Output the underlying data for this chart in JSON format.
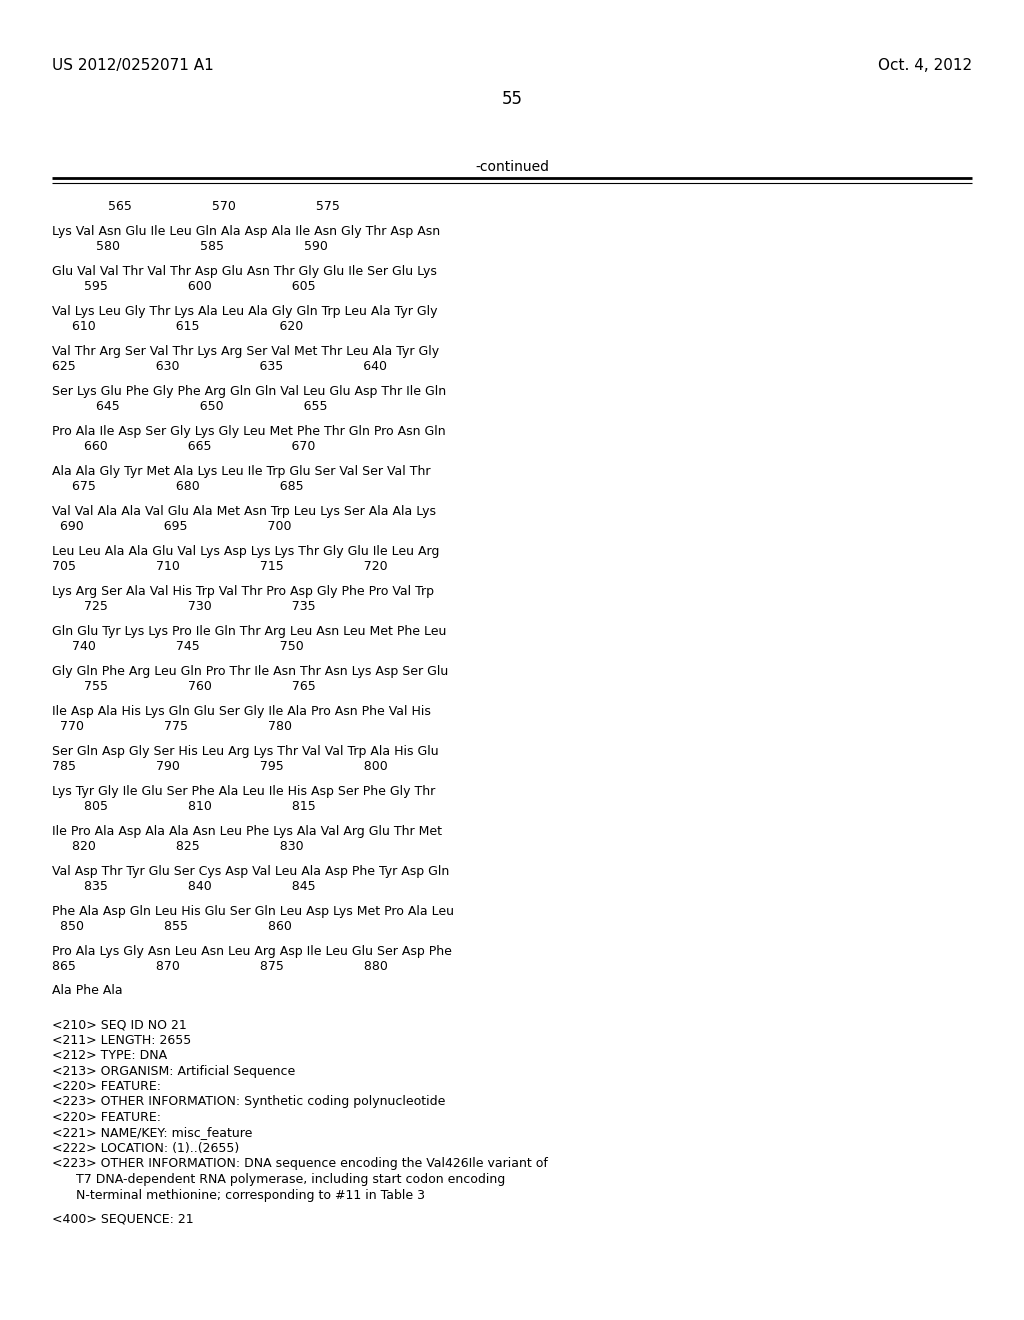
{
  "header_left": "US 2012/0252071 A1",
  "header_right": "Oct. 4, 2012",
  "page_number": "55",
  "continued_label": "-continued",
  "background_color": "#ffffff",
  "text_color": "#000000",
  "sequence_lines": [
    {
      "type": "numbers",
      "text": "              565                    570                    575"
    },
    {
      "type": "blank"
    },
    {
      "type": "seq",
      "text": "Lys Val Asn Glu Ile Leu Gln Ala Asp Ala Ile Asn Gly Thr Asp Asn"
    },
    {
      "type": "numbers",
      "text": "           580                    585                    590"
    },
    {
      "type": "blank"
    },
    {
      "type": "seq",
      "text": "Glu Val Val Thr Val Thr Asp Glu Asn Thr Gly Glu Ile Ser Glu Lys"
    },
    {
      "type": "numbers",
      "text": "        595                    600                    605"
    },
    {
      "type": "blank"
    },
    {
      "type": "seq",
      "text": "Val Lys Leu Gly Thr Lys Ala Leu Ala Gly Gln Trp Leu Ala Tyr Gly"
    },
    {
      "type": "numbers",
      "text": "     610                    615                    620"
    },
    {
      "type": "blank"
    },
    {
      "type": "seq",
      "text": "Val Thr Arg Ser Val Thr Lys Arg Ser Val Met Thr Leu Ala Tyr Gly"
    },
    {
      "type": "numbers",
      "text": "625                    630                    635                    640"
    },
    {
      "type": "blank"
    },
    {
      "type": "seq",
      "text": "Ser Lys Glu Phe Gly Phe Arg Gln Gln Val Leu Glu Asp Thr Ile Gln"
    },
    {
      "type": "numbers",
      "text": "           645                    650                    655"
    },
    {
      "type": "blank"
    },
    {
      "type": "seq",
      "text": "Pro Ala Ile Asp Ser Gly Lys Gly Leu Met Phe Thr Gln Pro Asn Gln"
    },
    {
      "type": "numbers",
      "text": "        660                    665                    670"
    },
    {
      "type": "blank"
    },
    {
      "type": "seq",
      "text": "Ala Ala Gly Tyr Met Ala Lys Leu Ile Trp Glu Ser Val Ser Val Thr"
    },
    {
      "type": "numbers",
      "text": "     675                    680                    685"
    },
    {
      "type": "blank"
    },
    {
      "type": "seq",
      "text": "Val Val Ala Ala Val Glu Ala Met Asn Trp Leu Lys Ser Ala Ala Lys"
    },
    {
      "type": "numbers",
      "text": "  690                    695                    700"
    },
    {
      "type": "blank"
    },
    {
      "type": "seq",
      "text": "Leu Leu Ala Ala Glu Val Lys Asp Lys Lys Thr Gly Glu Ile Leu Arg"
    },
    {
      "type": "numbers",
      "text": "705                    710                    715                    720"
    },
    {
      "type": "blank"
    },
    {
      "type": "seq",
      "text": "Lys Arg Ser Ala Val His Trp Val Thr Pro Asp Gly Phe Pro Val Trp"
    },
    {
      "type": "numbers",
      "text": "        725                    730                    735"
    },
    {
      "type": "blank"
    },
    {
      "type": "seq",
      "text": "Gln Glu Tyr Lys Lys Pro Ile Gln Thr Arg Leu Asn Leu Met Phe Leu"
    },
    {
      "type": "numbers",
      "text": "     740                    745                    750"
    },
    {
      "type": "blank"
    },
    {
      "type": "seq",
      "text": "Gly Gln Phe Arg Leu Gln Pro Thr Ile Asn Thr Asn Lys Asp Ser Glu"
    },
    {
      "type": "numbers",
      "text": "        755                    760                    765"
    },
    {
      "type": "blank"
    },
    {
      "type": "seq",
      "text": "Ile Asp Ala His Lys Gln Glu Ser Gly Ile Ala Pro Asn Phe Val His"
    },
    {
      "type": "numbers",
      "text": "  770                    775                    780"
    },
    {
      "type": "blank"
    },
    {
      "type": "seq",
      "text": "Ser Gln Asp Gly Ser His Leu Arg Lys Thr Val Val Trp Ala His Glu"
    },
    {
      "type": "numbers",
      "text": "785                    790                    795                    800"
    },
    {
      "type": "blank"
    },
    {
      "type": "seq",
      "text": "Lys Tyr Gly Ile Glu Ser Phe Ala Leu Ile His Asp Ser Phe Gly Thr"
    },
    {
      "type": "numbers",
      "text": "        805                    810                    815"
    },
    {
      "type": "blank"
    },
    {
      "type": "seq",
      "text": "Ile Pro Ala Asp Ala Ala Asn Leu Phe Lys Ala Val Arg Glu Thr Met"
    },
    {
      "type": "numbers",
      "text": "     820                    825                    830"
    },
    {
      "type": "blank"
    },
    {
      "type": "seq",
      "text": "Val Asp Thr Tyr Glu Ser Cys Asp Val Leu Ala Asp Phe Tyr Asp Gln"
    },
    {
      "type": "numbers",
      "text": "        835                    840                    845"
    },
    {
      "type": "blank"
    },
    {
      "type": "seq",
      "text": "Phe Ala Asp Gln Leu His Glu Ser Gln Leu Asp Lys Met Pro Ala Leu"
    },
    {
      "type": "numbers",
      "text": "  850                    855                    860"
    },
    {
      "type": "blank"
    },
    {
      "type": "seq",
      "text": "Pro Ala Lys Gly Asn Leu Asn Leu Arg Asp Ile Leu Glu Ser Asp Phe"
    },
    {
      "type": "numbers",
      "text": "865                    870                    875                    880"
    },
    {
      "type": "blank"
    },
    {
      "type": "seq",
      "text": "Ala Phe Ala"
    },
    {
      "type": "blank"
    },
    {
      "type": "blank"
    },
    {
      "type": "meta",
      "text": "<210> SEQ ID NO 21"
    },
    {
      "type": "meta",
      "text": "<211> LENGTH: 2655"
    },
    {
      "type": "meta",
      "text": "<212> TYPE: DNA"
    },
    {
      "type": "meta",
      "text": "<213> ORGANISM: Artificial Sequence"
    },
    {
      "type": "meta",
      "text": "<220> FEATURE:"
    },
    {
      "type": "meta",
      "text": "<223> OTHER INFORMATION: Synthetic coding polynucleotide"
    },
    {
      "type": "meta",
      "text": "<220> FEATURE:"
    },
    {
      "type": "meta",
      "text": "<221> NAME/KEY: misc_feature"
    },
    {
      "type": "meta",
      "text": "<222> LOCATION: (1)..(2655)"
    },
    {
      "type": "meta",
      "text": "<223> OTHER INFORMATION: DNA sequence encoding the Val426Ile variant of"
    },
    {
      "type": "meta",
      "text": "      T7 DNA-dependent RNA polymerase, including start codon encoding"
    },
    {
      "type": "meta",
      "text": "      N-terminal methionine; corresponding to #11 in Table 3"
    },
    {
      "type": "blank"
    },
    {
      "type": "meta",
      "text": "<400> SEQUENCE: 21"
    }
  ]
}
